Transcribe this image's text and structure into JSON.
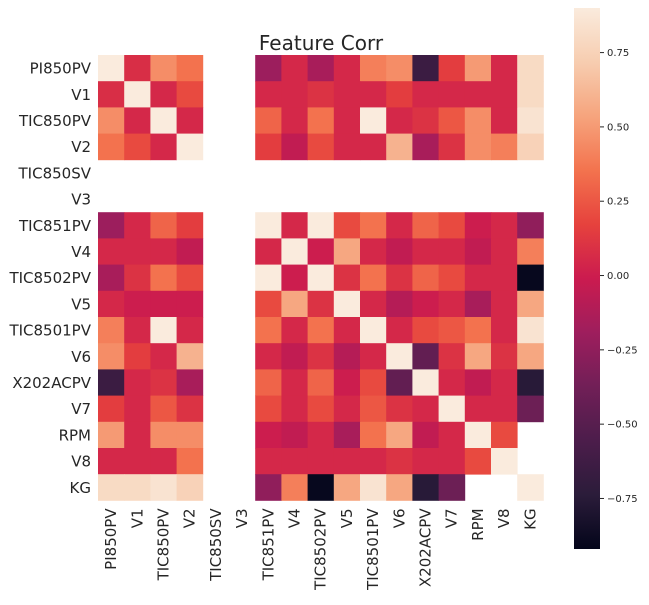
{
  "chart_data": {
    "type": "heatmap",
    "title": "Feature Corr",
    "xlabel": "",
    "ylabel": "",
    "labels": [
      "PI850PV",
      "V1",
      "TIC850PV",
      "V2",
      "TIC850SV",
      "V3",
      "TIC851PV",
      "V4",
      "TIC8502PV",
      "V5",
      "TIC8501PV",
      "V6",
      "X202ACPV",
      "V7",
      "RPM",
      "V8",
      "KG"
    ],
    "matrix": [
      [
        1.0,
        0.08,
        0.45,
        0.35,
        null,
        null,
        -0.2,
        0.05,
        -0.15,
        0.05,
        0.4,
        0.45,
        -0.65,
        0.15,
        0.5,
        0.05,
        0.8
      ],
      [
        0.08,
        1.0,
        0.05,
        0.2,
        null,
        null,
        0.05,
        0.05,
        0.1,
        0.05,
        0.05,
        0.15,
        0.05,
        0.05,
        0.05,
        0.05,
        0.8
      ],
      [
        0.45,
        0.05,
        1.0,
        0.05,
        null,
        null,
        0.3,
        0.05,
        0.35,
        0.05,
        0.9,
        0.05,
        0.1,
        0.25,
        0.45,
        0.05,
        0.85
      ],
      [
        0.35,
        0.2,
        0.05,
        1.0,
        null,
        null,
        0.15,
        -0.05,
        0.2,
        0.05,
        0.05,
        0.6,
        -0.15,
        0.1,
        0.45,
        0.4,
        0.75
      ],
      [
        null,
        null,
        null,
        null,
        null,
        null,
        null,
        null,
        null,
        null,
        null,
        null,
        null,
        null,
        null,
        null,
        null
      ],
      [
        null,
        null,
        null,
        null,
        null,
        null,
        null,
        null,
        null,
        null,
        null,
        null,
        null,
        null,
        null,
        null,
        null
      ],
      [
        -0.2,
        0.05,
        0.3,
        0.15,
        null,
        null,
        1.0,
        0.05,
        0.95,
        0.2,
        0.35,
        0.05,
        0.3,
        0.2,
        0.0,
        0.05,
        -0.25
      ],
      [
        0.05,
        0.05,
        0.05,
        -0.05,
        null,
        null,
        0.05,
        1.0,
        0.0,
        0.55,
        0.05,
        -0.05,
        0.05,
        0.05,
        -0.05,
        0.05,
        0.4
      ],
      [
        -0.15,
        0.1,
        0.35,
        0.2,
        null,
        null,
        0.95,
        0.0,
        1.0,
        0.1,
        0.35,
        0.1,
        0.3,
        0.2,
        0.05,
        0.05,
        -0.9
      ],
      [
        0.05,
        0.0,
        0.0,
        0.0,
        null,
        null,
        0.2,
        0.55,
        0.1,
        1.0,
        0.05,
        -0.1,
        0.0,
        0.05,
        -0.15,
        0.05,
        0.55
      ],
      [
        0.4,
        0.05,
        0.9,
        0.05,
        null,
        null,
        0.35,
        0.05,
        0.35,
        0.05,
        1.0,
        0.05,
        0.2,
        0.25,
        0.35,
        0.05,
        0.85
      ],
      [
        0.45,
        0.15,
        0.05,
        0.6,
        null,
        null,
        0.05,
        -0.05,
        0.1,
        -0.1,
        0.05,
        1.0,
        -0.45,
        0.1,
        0.55,
        0.1,
        0.55
      ],
      [
        -0.65,
        0.05,
        0.1,
        -0.15,
        null,
        null,
        0.3,
        0.05,
        0.3,
        0.0,
        0.2,
        -0.45,
        1.0,
        0.05,
        -0.05,
        0.05,
        -0.75
      ],
      [
        0.15,
        0.05,
        0.25,
        0.1,
        null,
        null,
        0.2,
        0.05,
        0.2,
        0.05,
        0.25,
        0.1,
        0.05,
        1.0,
        0.05,
        0.05,
        -0.4
      ],
      [
        0.5,
        0.05,
        0.45,
        0.45,
        null,
        null,
        0.0,
        -0.05,
        0.05,
        -0.15,
        0.35,
        0.55,
        -0.05,
        0.05,
        1.0,
        0.2,
        null
      ],
      [
        0.05,
        0.05,
        0.05,
        0.35,
        null,
        null,
        0.05,
        0.05,
        0.05,
        0.05,
        0.05,
        0.1,
        0.05,
        0.05,
        0.2,
        1.0,
        null
      ],
      [
        0.8,
        0.8,
        0.85,
        0.75,
        null,
        null,
        -0.25,
        0.4,
        -0.9,
        0.55,
        0.85,
        0.55,
        -0.75,
        -0.4,
        null,
        null,
        0.9
      ]
    ],
    "colorscale": {
      "vmin": -0.92,
      "vmax": 0.9,
      "stops": [
        {
          "v": 0.0,
          "color": "#03051a"
        },
        {
          "v": 0.1,
          "color": "#2b1c3a"
        },
        {
          "v": 0.2,
          "color": "#4c1d4b"
        },
        {
          "v": 0.3,
          "color": "#711f57"
        },
        {
          "v": 0.4,
          "color": "#9e1e5d"
        },
        {
          "v": 0.5,
          "color": "#cb1b4f"
        },
        {
          "v": 0.6,
          "color": "#e6423d"
        },
        {
          "v": 0.7,
          "color": "#f3734e"
        },
        {
          "v": 0.8,
          "color": "#f6a47d"
        },
        {
          "v": 0.9,
          "color": "#f7cdb0"
        },
        {
          "v": 1.0,
          "color": "#faebdd"
        }
      ]
    },
    "colorbar_ticks": [
      {
        "value": 0.75,
        "label": "0.75"
      },
      {
        "value": 0.5,
        "label": "0.50"
      },
      {
        "value": 0.25,
        "label": "0.25"
      },
      {
        "value": 0.0,
        "label": "0.00"
      },
      {
        "value": -0.25,
        "label": "−0.25"
      },
      {
        "value": -0.5,
        "label": "−0.50"
      },
      {
        "value": -0.75,
        "label": "−0.75"
      }
    ],
    "legend_placement": "right",
    "grid": false
  }
}
